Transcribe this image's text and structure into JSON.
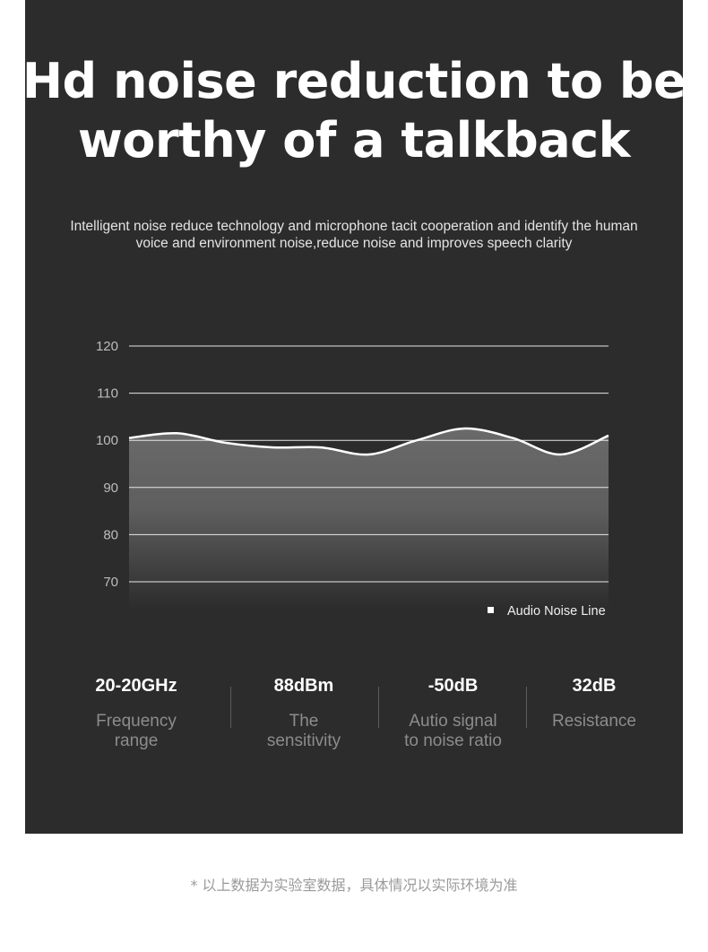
{
  "headline": "Hd noise reduction to be\nworthy of a talkback",
  "headline_lines": [
    "Hd noise reduction to be",
    "worthy of a talkback"
  ],
  "subtitle_lines": [
    "Intelligent noise reduce technology and microphone tacit cooperation and identify the human",
    "voice and environment noise,reduce noise and improves speech clarity"
  ],
  "chart_data": {
    "type": "area",
    "yticks": [
      "120",
      "110",
      "100",
      "90",
      "80",
      "70"
    ],
    "ylim": [
      70,
      120
    ],
    "grid": true,
    "legend_position": "bottom-right",
    "series": [
      {
        "name": "Audio Noise Line",
        "x": [
          0,
          1,
          2,
          3,
          4,
          5,
          6,
          7,
          8,
          9,
          10
        ],
        "values": [
          100.5,
          101.5,
          99.5,
          98.5,
          98.5,
          97.0,
          100.0,
          102.5,
          100.5,
          97.0,
          101.0
        ]
      }
    ]
  },
  "specs": [
    {
      "value": "20-20GHz",
      "label": "Frequency\nrange"
    },
    {
      "value": "88dBm",
      "label": "The\nsensitivity"
    },
    {
      "value": "-50dB",
      "label": "Autio signal\nto noise ratio"
    },
    {
      "value": "32dB",
      "label": "Resistance"
    }
  ],
  "footnote": "* 以上数据为实验室数据，具体情况以实际环境为准",
  "colors": {
    "panel": "#2c2c2c",
    "line": "#ffffff",
    "area_top": "#6a6a6a",
    "area_bottom": "#2c2c2c",
    "gridline": "#e6e6e6"
  }
}
